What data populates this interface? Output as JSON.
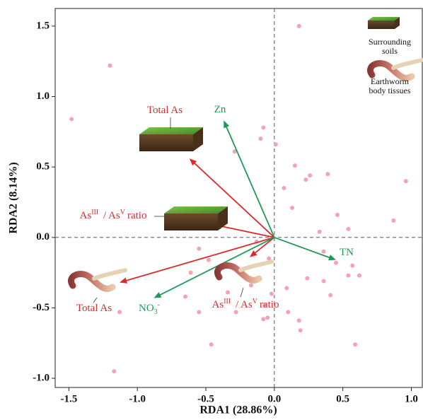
{
  "chart_data": {
    "type": "biplot",
    "x_label": "RDA1 (28.86%)",
    "y_label": "RDA2 (8.14%)",
    "xlim": [
      -1.6,
      1.08
    ],
    "ylim": [
      -1.065,
      1.625
    ],
    "xticks": [
      -1.5,
      {
        "value": -1.0,
        "label": "-1.0"
      },
      -0.5,
      {
        "value": 0,
        "label": "0.0"
      },
      0.5,
      {
        "value": 1.0,
        "label": "1.0"
      }
    ],
    "yticks": [
      {
        "value": -1.0,
        "label": "-1.0"
      },
      -0.5,
      {
        "value": 0,
        "label": "0.0"
      },
      0.5,
      {
        "value": 1.0,
        "label": "1.0"
      },
      1.5
    ],
    "point_color": "#f4a3b4",
    "points": {
      "x": [
        0.18,
        -1.2,
        -1.48,
        -0.08,
        -0.1,
        -0.29,
        0.01,
        0.15,
        0.26,
        0.39,
        0.96,
        0.23,
        0.07,
        0.13,
        0.46,
        0.87,
        0.54,
        0.33,
        -0.55,
        -0.13,
        -0.04,
        0.36,
        0.45,
        0.57,
        0.62,
        -0.61,
        -0.48,
        0.24,
        0.36,
        0.54,
        0.41,
        0.09,
        -0.02,
        -0.17,
        -0.34,
        -0.65,
        -0.07,
        -0.05,
        0.1,
        0.18,
        -0.55,
        -0.28,
        -1.13,
        0.19,
        -0.08,
        -0.46,
        0.59,
        -1.17
      ],
      "y": [
        1.5,
        1.22,
        0.84,
        0.78,
        0.7,
        0.61,
        0.66,
        0.51,
        0.44,
        0.45,
        0.4,
        0.41,
        0.35,
        0.21,
        0.16,
        0.12,
        0.06,
        0.04,
        -0.08,
        -0.03,
        -0.15,
        -0.1,
        -0.18,
        -0.2,
        -0.27,
        -0.25,
        -0.16,
        -0.29,
        -0.31,
        -0.27,
        -0.41,
        -0.36,
        -0.4,
        -0.34,
        -0.39,
        -0.42,
        -0.48,
        -0.57,
        -0.53,
        -0.59,
        -0.53,
        -0.53,
        -0.53,
        -0.66,
        -0.58,
        -0.76,
        -0.76,
        -0.95
      ]
    },
    "vectors": [
      {
        "label": [
          {
            "text": "Total As"
          }
        ],
        "color": "#d92b2b",
        "x": -0.62,
        "y": 0.56
      },
      {
        "label": [
          {
            "text": "As"
          },
          {
            "text": "III",
            "sup": true
          },
          {
            "text": " / As"
          },
          {
            "text": "V",
            "sup": true
          },
          {
            "text": "ratio"
          }
        ],
        "color": "#d92b2b",
        "x": -0.44,
        "y": 0.09
      },
      {
        "label": [
          {
            "text": "Total As"
          }
        ],
        "color": "#d92b2b",
        "x": -1.13,
        "y": -0.32
      },
      {
        "label": [
          {
            "text": "As"
          },
          {
            "text": "III",
            "sup": true
          },
          {
            "text": " / As"
          },
          {
            "text": "V",
            "sup": true
          },
          {
            "text": "ratio"
          }
        ],
        "color": "#d92b2b",
        "x": -0.18,
        "y": -0.14
      },
      {
        "label": [
          {
            "text": "Zn"
          }
        ],
        "color": "#1e9a57",
        "x": -0.37,
        "y": 0.83
      },
      {
        "label": [
          {
            "text": "TN"
          }
        ],
        "color": "#1e9a57",
        "x": 0.45,
        "y": -0.16
      },
      {
        "label": [
          {
            "text": "NO"
          },
          {
            "text": "3",
            "sub": true
          },
          {
            "text": "-",
            "sup": true
          }
        ],
        "color": "#1e9a57",
        "x": -0.88,
        "y": -0.43
      }
    ],
    "legend": [
      {
        "lines": [
          "Surrounding",
          "soils"
        ]
      },
      {
        "lines": [
          "Earthworm",
          "body tissues"
        ]
      }
    ]
  }
}
